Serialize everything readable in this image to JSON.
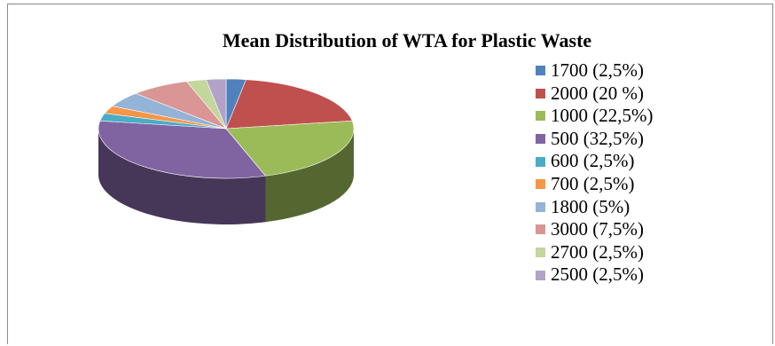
{
  "chart_data": {
    "type": "pie",
    "title": "Mean Distribution of WTA for Plastic Waste",
    "categories": [
      "1700",
      "2000",
      "1000",
      "500",
      "600",
      "700",
      "1800",
      "3000",
      "2700",
      "2500"
    ],
    "values": [
      2.5,
      20,
      22.5,
      32.5,
      2.5,
      2.5,
      5,
      7.5,
      2.5,
      2.5
    ],
    "legend_labels": [
      "1700 (2,5%)",
      "2000 (20 %)",
      "1000 (22,5%)",
      "500 (32,5%)",
      "600 (2,5%)",
      "700 (2,5%)",
      "1800 (5%)",
      "3000 (7,5%)",
      "2700 (2,5%)",
      "2500 (2,5%)"
    ],
    "colors": [
      "#4f81bd",
      "#c0504d",
      "#9bbb59",
      "#8064a2",
      "#4bacc6",
      "#f79646",
      "#95b3d7",
      "#d99694",
      "#c3d69b",
      "#b3a2c7"
    ],
    "legend_position": "right",
    "style": "3d"
  }
}
